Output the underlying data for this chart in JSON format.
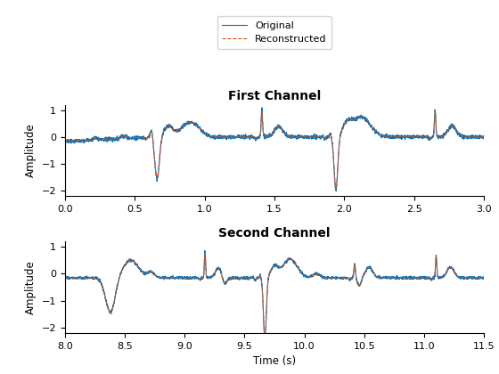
{
  "title1": "First Channel",
  "title2": "Second Channel",
  "ylabel": "Amplitude",
  "xlabel": "Time (s)",
  "xlim1": [
    0,
    3
  ],
  "xticks1": [
    0,
    0.5,
    1.0,
    1.5,
    2.0,
    2.5,
    3.0
  ],
  "xlim2": [
    8,
    11.5
  ],
  "xticks2": [
    8.0,
    8.5,
    9.0,
    9.5,
    10.0,
    10.5,
    11.0,
    11.5
  ],
  "ylim": [
    -2.2,
    1.2
  ],
  "yticks": [
    -2,
    -1,
    0,
    1
  ],
  "original_color": "#0072BD",
  "reconstructed_color": "#D95319",
  "legend_labels": [
    "Original",
    "Reconstructed"
  ],
  "fs": 1000,
  "background_color": "#ffffff"
}
